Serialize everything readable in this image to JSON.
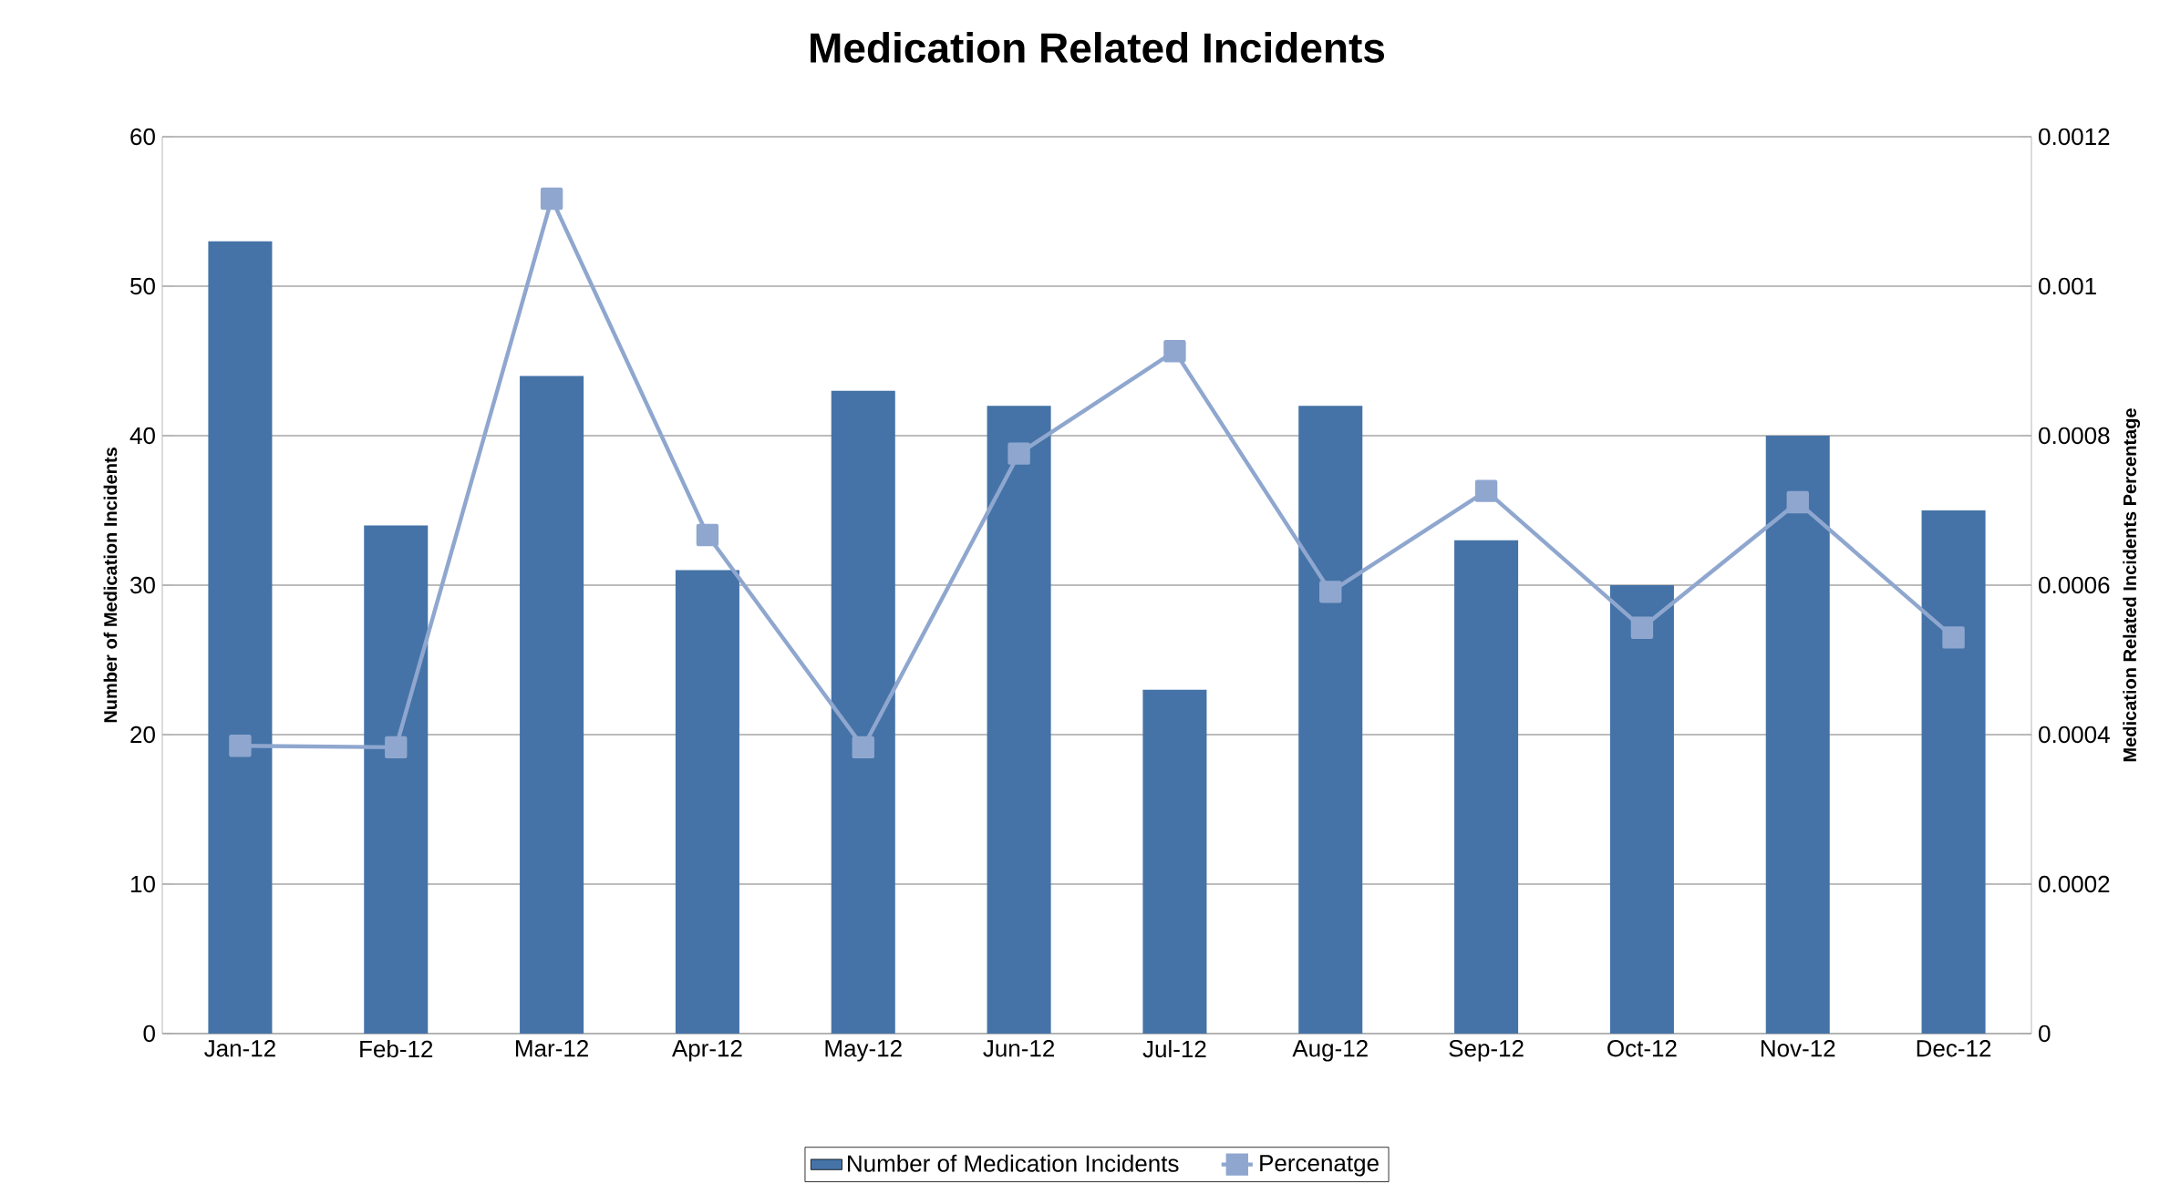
{
  "chart_data": {
    "type": "bar",
    "title": "Medication Related Incidents",
    "categories": [
      "Jan-12",
      "Feb-12",
      "Mar-12",
      "Apr-12",
      "May-12",
      "Jun-12",
      "Jul-12",
      "Aug-12",
      "Sep-12",
      "Oct-12",
      "Nov-12",
      "Dec-12"
    ],
    "series": [
      {
        "name": "Number of Medication Incidents",
        "color": "#4573a7",
        "values": [
          53,
          34,
          44,
          31,
          43,
          42,
          23,
          42,
          33,
          30,
          40,
          35
        ]
      },
      {
        "name": "Percenatge",
        "type": "line",
        "axis": "y2",
        "color": "#8fa7cf",
        "marker": "square",
        "values": [
          0.000385,
          0.000383,
          0.001117,
          0.000667,
          0.000383,
          0.000776,
          0.000913,
          0.000591,
          0.000726,
          0.000543,
          0.000711,
          0.00053
        ]
      }
    ],
    "ylabel": "Number of Medication Incidents",
    "y2label": "Medication Related Incidents Percentage",
    "ylim": [
      0,
      60
    ],
    "yticks": [
      0,
      10,
      20,
      30,
      40,
      50,
      60
    ],
    "y2lim": [
      0,
      0.0012
    ],
    "y2ticks": [
      0,
      0.0002,
      0.0004,
      0.0006,
      0.0008,
      0.001,
      0.0012
    ],
    "grid": "y",
    "legend": "bottom"
  }
}
